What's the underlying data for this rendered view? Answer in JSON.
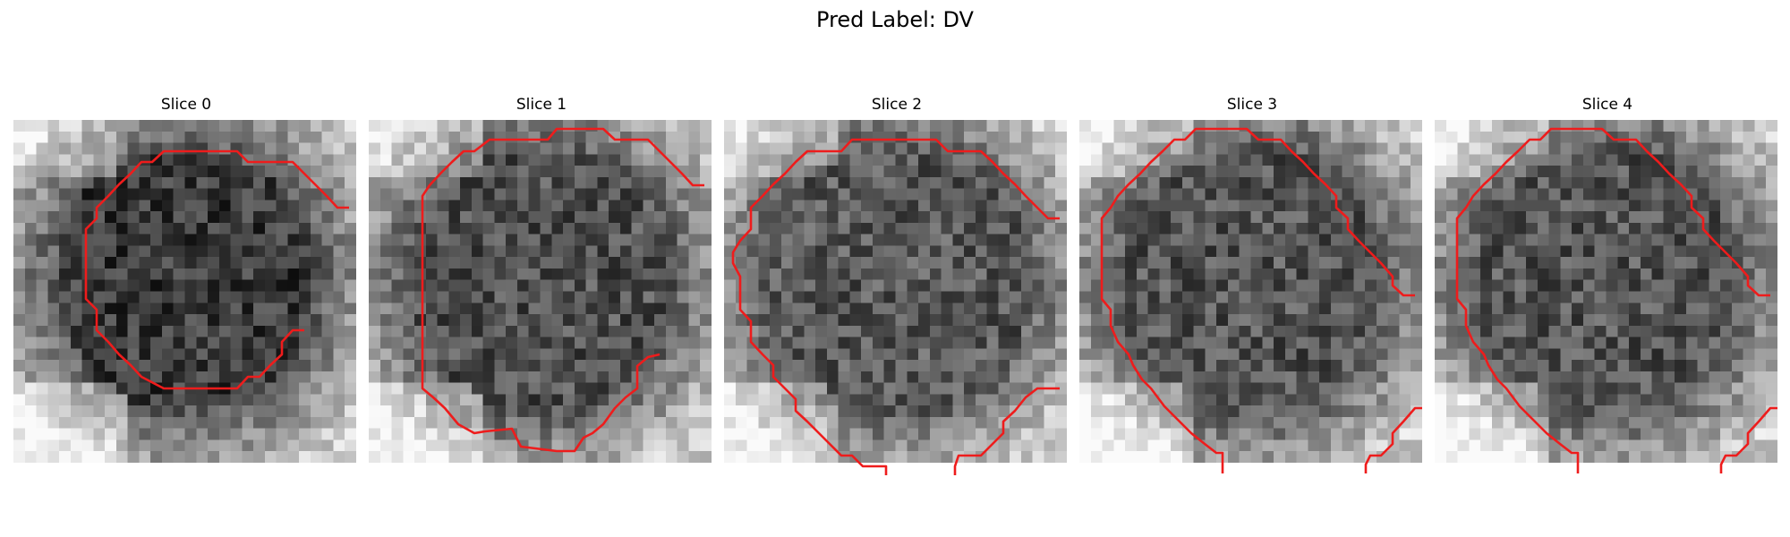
{
  "figure": {
    "title": "Pred Label: DV"
  },
  "panels": [
    {
      "title": "Slice 0",
      "image": "grayscale-mri-slice",
      "seed": 11,
      "dark": 0.78,
      "base": 0.42,
      "contour_color": "#ee1c1c"
    },
    {
      "title": "Slice 1",
      "image": "grayscale-mri-slice",
      "seed": 23,
      "dark": 0.35,
      "base": 0.4,
      "contour_color": "#ee1c1c"
    },
    {
      "title": "Slice 2",
      "image": "grayscale-mri-slice",
      "seed": 37,
      "dark": 0.15,
      "base": 0.38,
      "contour_color": "#ee1c1c"
    },
    {
      "title": "Slice 3",
      "image": "grayscale-mri-slice",
      "seed": 41,
      "dark": 0.3,
      "base": 0.4,
      "contour_color": "#ee1c1c"
    },
    {
      "title": "Slice 4",
      "image": "grayscale-mri-slice",
      "seed": 41,
      "dark": 0.3,
      "base": 0.4,
      "contour_color": "#ee1c1c"
    }
  ]
}
